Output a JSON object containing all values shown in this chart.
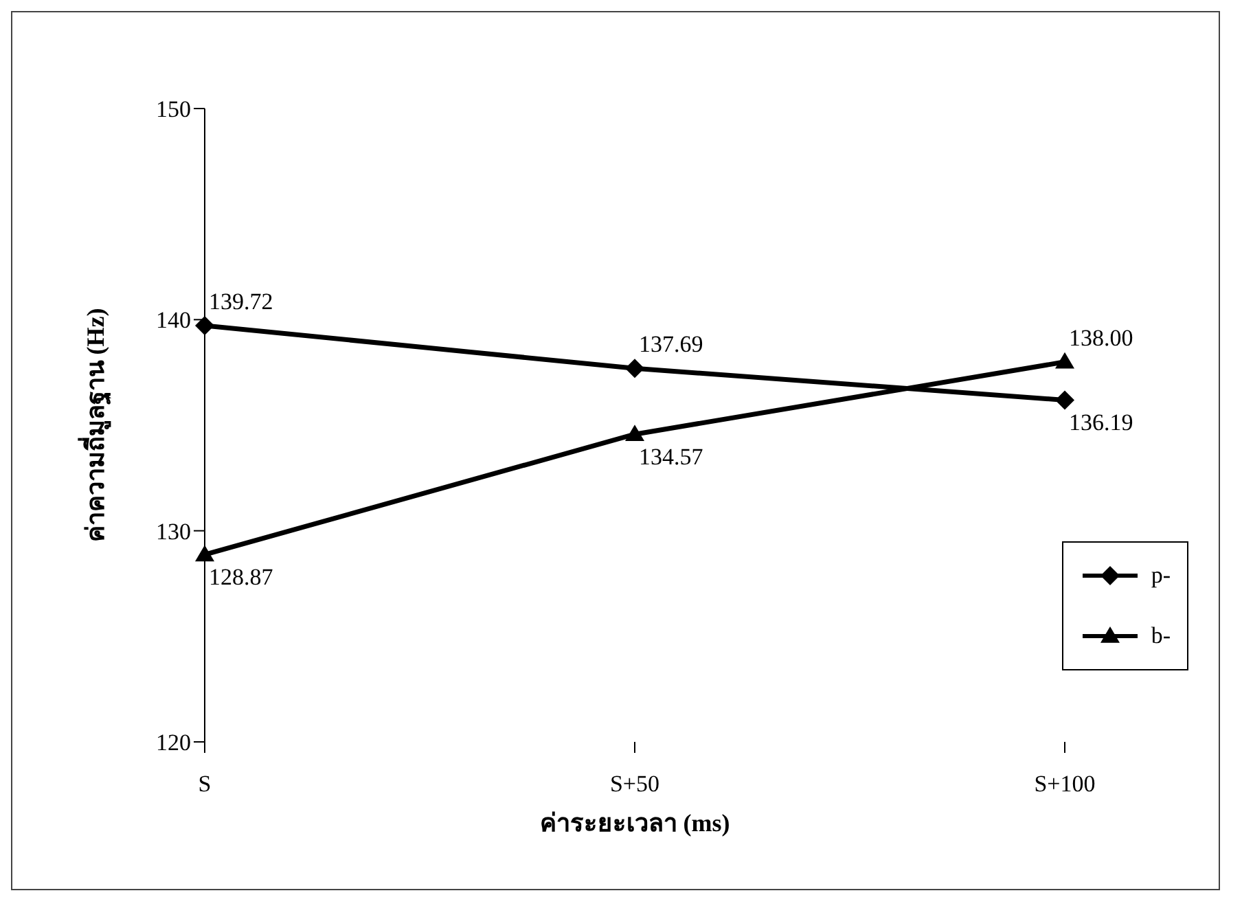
{
  "chart_data": {
    "type": "line",
    "xlabel": "ค่าระยะเวลา (ms)",
    "ylabel": "ค่าความถี่มูลฐาน (Hz)",
    "categories": [
      "S",
      "S+50",
      "S+100"
    ],
    "series": [
      {
        "name": "p-",
        "color": "#000000",
        "marker": "diamond",
        "values": [
          139.72,
          137.69,
          136.19
        ],
        "value_labels": [
          "139.72",
          "137.69",
          "136.19"
        ]
      },
      {
        "name": "b-",
        "color": "#000000",
        "marker": "triangle",
        "values": [
          128.87,
          134.57,
          138.0
        ],
        "value_labels": [
          "128.87",
          "134.57",
          "138.00"
        ]
      }
    ],
    "ylim": [
      120,
      150
    ],
    "yticks": [
      120,
      130,
      140,
      150
    ],
    "grid": false,
    "legend": "right",
    "data_labels": true,
    "line_style": "solid"
  }
}
